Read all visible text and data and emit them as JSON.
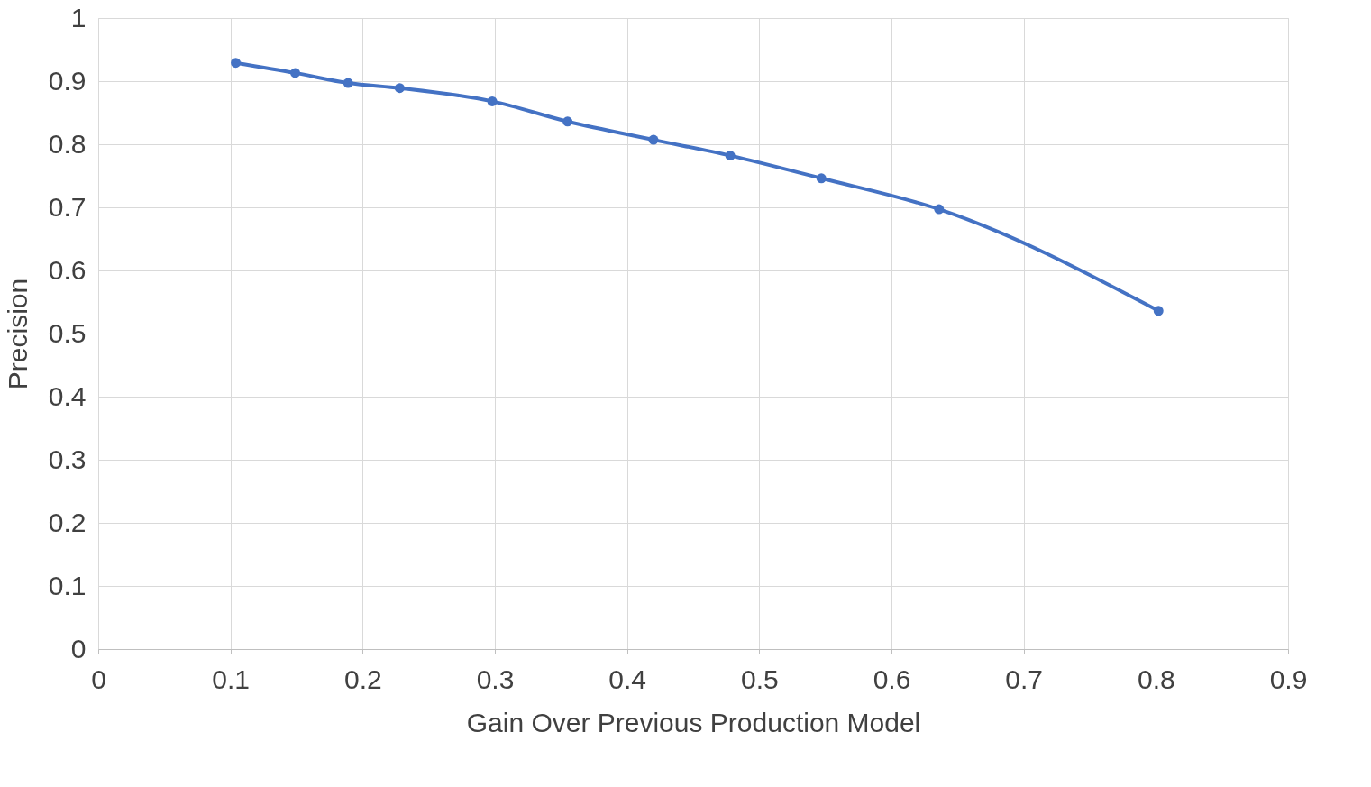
{
  "chart_data": {
    "type": "line",
    "xlabel": "Gain Over Previous Production Model",
    "ylabel": "Precision",
    "x": [
      0.104,
      0.149,
      0.189,
      0.228,
      0.298,
      0.355,
      0.42,
      0.478,
      0.547,
      0.636,
      0.802
    ],
    "series": [
      {
        "color": "#4472c4",
        "values": [
          0.929,
          0.913,
          0.897,
          0.889,
          0.868,
          0.836,
          0.807,
          0.782,
          0.746,
          0.697,
          0.536
        ]
      }
    ],
    "xlim": [
      0,
      0.9
    ],
    "xticks": [
      0,
      0.1,
      0.2,
      0.3,
      0.4,
      0.5,
      0.6,
      0.7,
      0.8,
      0.9
    ],
    "ylim": [
      0,
      1
    ],
    "yticks": [
      0,
      0.1,
      0.2,
      0.3,
      0.4,
      0.5,
      0.6,
      0.7,
      0.8,
      0.9,
      1
    ],
    "grid": true,
    "marker": "circle",
    "line_style": "solid"
  }
}
